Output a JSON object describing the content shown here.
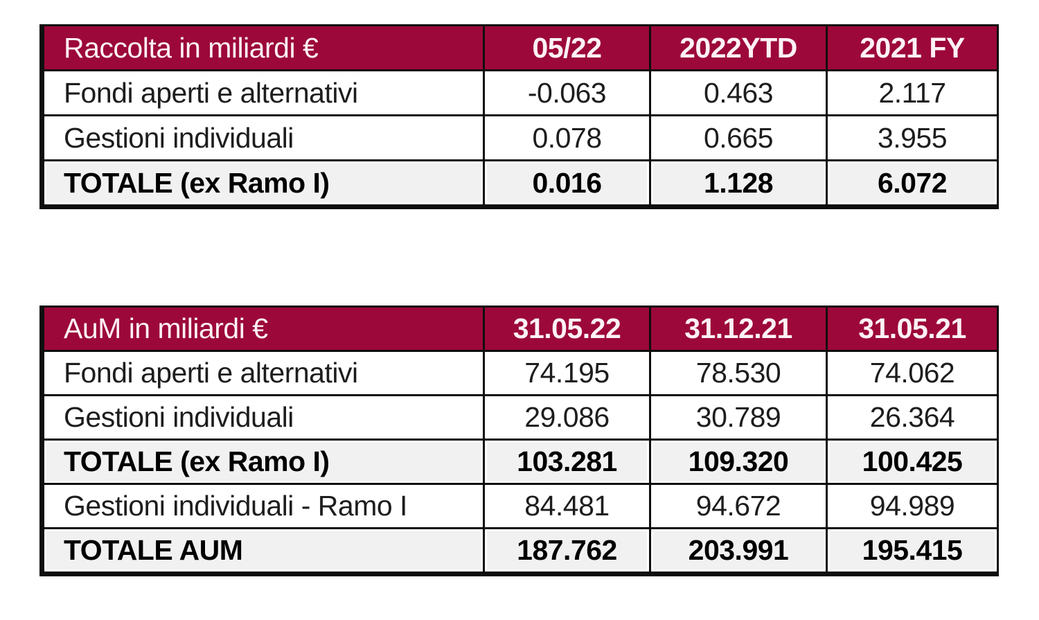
{
  "colors": {
    "header_bg": "#9C0839",
    "header_text": "#FDF1F5",
    "total_row_bg": "#F1F1F1",
    "border": "#0E0E0E",
    "body_text": "#1D1D1D"
  },
  "tables": [
    {
      "name": "raccolta",
      "header": {
        "label": "Raccolta in miliardi €",
        "columns": [
          "05/22",
          "2022YTD",
          "2021 FY"
        ]
      },
      "rows": [
        {
          "label": "Fondi aperti e alternativi",
          "values": [
            "-0.063",
            "0.463",
            "2.117"
          ],
          "total": false
        },
        {
          "label": "Gestioni individuali",
          "values": [
            "0.078",
            "0.665",
            "3.955"
          ],
          "total": false
        },
        {
          "label": "TOTALE (ex Ramo I)",
          "values": [
            "0.016",
            "1.128",
            "6.072"
          ],
          "total": true
        }
      ]
    },
    {
      "name": "aum",
      "header": {
        "label": "AuM in miliardi €",
        "columns": [
          "31.05.22",
          "31.12.21",
          "31.05.21"
        ]
      },
      "rows": [
        {
          "label": "Fondi aperti e alternativi",
          "values": [
            "74.195",
            "78.530",
            "74.062"
          ],
          "total": false
        },
        {
          "label": "Gestioni individuali",
          "values": [
            "29.086",
            "30.789",
            "26.364"
          ],
          "total": false
        },
        {
          "label": "TOTALE (ex Ramo I)",
          "values": [
            "103.281",
            "109.320",
            "100.425"
          ],
          "total": true
        },
        {
          "label": "Gestioni individuali - Ramo I",
          "values": [
            "84.481",
            "94.672",
            "94.989"
          ],
          "total": false
        },
        {
          "label": "TOTALE AUM",
          "values": [
            "187.762",
            "203.991",
            "195.415"
          ],
          "total": true
        }
      ]
    }
  ]
}
